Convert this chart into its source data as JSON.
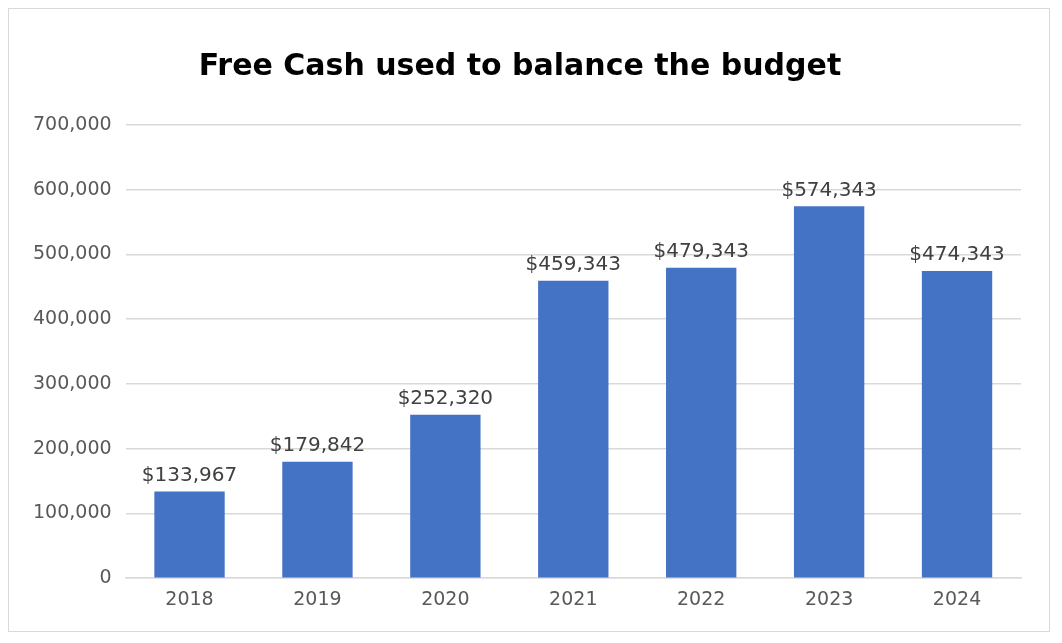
{
  "chart_data": {
    "type": "bar",
    "title": "Free Cash used to balance the budget",
    "categories": [
      "2018",
      "2019",
      "2020",
      "2021",
      "2022",
      "2023",
      "2024"
    ],
    "values": [
      133967,
      179842,
      252320,
      459343,
      479343,
      574343,
      474343
    ],
    "value_labels": [
      "$133,967",
      "$179,842",
      "$252,320",
      "$459,343",
      "$479,343",
      "$574,343",
      "$474,343"
    ],
    "color": "#4472c4",
    "ylim": [
      0,
      700000
    ],
    "yticks": [
      {
        "value": 0,
        "label": "0"
      },
      {
        "value": 100000,
        "label": "100,000"
      },
      {
        "value": 200000,
        "label": "200,000"
      },
      {
        "value": 300000,
        "label": "300,000"
      },
      {
        "value": 400000,
        "label": "400,000"
      },
      {
        "value": 500000,
        "label": "500,000"
      },
      {
        "value": 600000,
        "label": "600,000"
      },
      {
        "value": 700000,
        "label": "700,000"
      }
    ],
    "grid": "y",
    "legend": false
  }
}
